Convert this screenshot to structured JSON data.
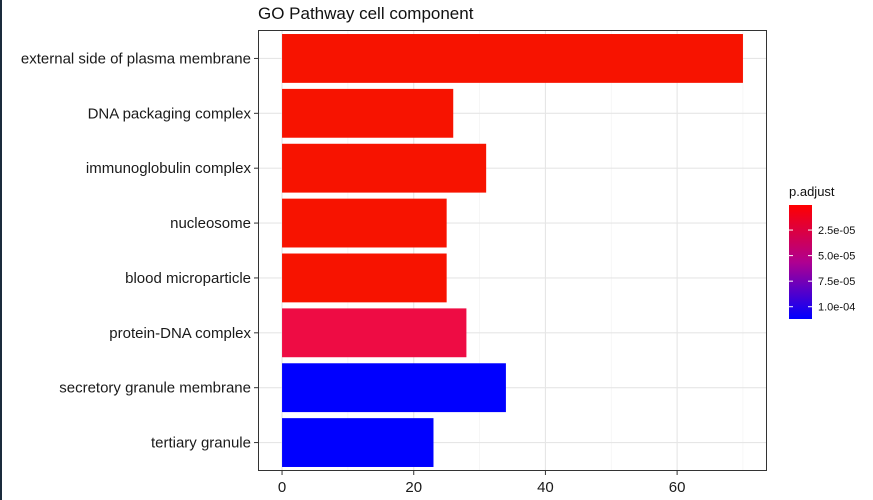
{
  "chart_data": {
    "type": "bar",
    "orientation": "horizontal",
    "title": "GO Pathway cell component",
    "xlabel": "",
    "ylabel": "",
    "xlim": [
      -3.5,
      73.5
    ],
    "x_ticks": [
      0,
      20,
      40,
      60
    ],
    "grid": true,
    "categories": [
      "external side of plasma membrane",
      "DNA packaging complex",
      "immunoglobulin complex",
      "nucleosome",
      "blood microparticle",
      "protein-DNA complex",
      "secretory granule membrane",
      "tertiary granule"
    ],
    "values": [
      70,
      26,
      31,
      25,
      25,
      28,
      34,
      23
    ],
    "p_adjust": [
      1e-06,
      1e-06,
      1e-06,
      1e-06,
      1e-06,
      1.8e-05,
      0.000112,
      0.000112
    ],
    "colors": [
      "#f71300",
      "#f71300",
      "#f71300",
      "#f71300",
      "#f71300",
      "#ee0c44",
      "#0000ff",
      "#0000ff"
    ],
    "legend": {
      "title": "p.adjust",
      "placement": "right",
      "ticks": [
        "2.5e-05",
        "5.0e-05",
        "7.5e-05",
        "1.0e-04"
      ],
      "tick_values": [
        2.5e-05,
        5e-05,
        7.5e-05,
        0.0001
      ],
      "range": [
        5e-07,
        0.000112
      ],
      "color_low": "#ff0000",
      "color_high": "#0000ff"
    }
  }
}
